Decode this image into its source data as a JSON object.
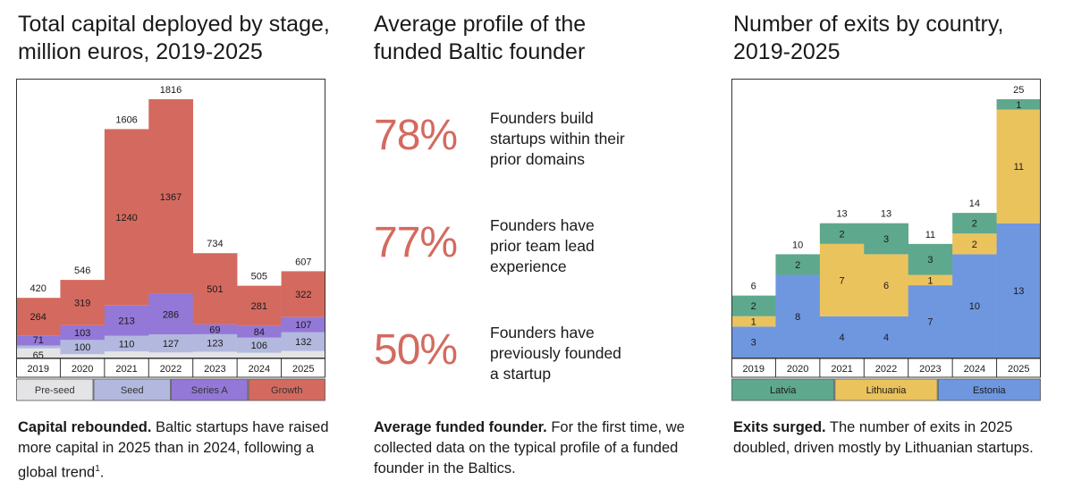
{
  "panels": {
    "capital": {
      "title_lines": [
        "Total capital deployed by stage,",
        "million euros, 2019-2025"
      ],
      "caption_bold": "Capital rebounded.",
      "caption_text": " Baltic startups have raised more capital in 2025 than in 2024, following a global trend",
      "caption_sup": "1",
      "caption_end": "."
    },
    "founder": {
      "title_lines": [
        "Average profile of the",
        "funded Baltic founder"
      ],
      "stats": [
        {
          "value": "78%",
          "lines": [
            "Founders build",
            "startups within their",
            "prior domains"
          ]
        },
        {
          "value": "77%",
          "lines": [
            "Founders have",
            "prior team lead",
            "experience"
          ]
        },
        {
          "value": "50%",
          "lines": [
            "Founders have",
            "previously founded",
            "a startup"
          ]
        }
      ],
      "caption_bold": "Average funded founder.",
      "caption_text": " For the first time, we collected data on the typical profile of a funded founder in the Baltics."
    },
    "exits": {
      "title_lines": [
        "Number of exits by country,",
        "2019-2025"
      ],
      "caption_bold": "Exits surged.",
      "caption_text": " The number of exits in 2025 doubled, driven mostly by Lithuanian startups."
    }
  },
  "chart_data": [
    {
      "type": "bar",
      "stacked": true,
      "title": "Total capital deployed by stage, million euros, 2019-2025",
      "categories": [
        "2019",
        "2020",
        "2021",
        "2022",
        "2023",
        "2024",
        "2025"
      ],
      "totals": [
        420,
        546,
        1606,
        1816,
        734,
        505,
        607
      ],
      "ylim": [
        0,
        1816
      ],
      "series": [
        {
          "name": "Pre-seed",
          "color": "#e4e4e6",
          "values": [
            65,
            24,
            43,
            36,
            41,
            34,
            46
          ],
          "labels": [
            "65",
            "",
            "",
            "",
            "",
            "",
            ""
          ]
        },
        {
          "name": "Seed",
          "color": "#b3b9de",
          "values": [
            20,
            100,
            110,
            127,
            123,
            106,
            132
          ],
          "labels": [
            "",
            "100",
            "110",
            "127",
            "123",
            "106",
            "132"
          ]
        },
        {
          "name": "Series A",
          "color": "#9378d8",
          "values": [
            71,
            103,
            213,
            286,
            69,
            84,
            107
          ],
          "labels": [
            "71",
            "103",
            "213",
            "286",
            "69",
            "84",
            "107"
          ]
        },
        {
          "name": "Growth",
          "color": "#d46a5f",
          "values": [
            264,
            319,
            1240,
            1367,
            501,
            281,
            322
          ],
          "labels": [
            "264",
            "319",
            "1240",
            "1367",
            "501",
            "281",
            "322"
          ]
        }
      ]
    },
    {
      "type": "bar",
      "stacked": true,
      "title": "Number of exits by country, 2019-2025",
      "categories": [
        "2019",
        "2020",
        "2021",
        "2022",
        "2023",
        "2024",
        "2025"
      ],
      "totals": [
        6,
        10,
        13,
        13,
        11,
        14,
        25
      ],
      "ylim": [
        0,
        25
      ],
      "series": [
        {
          "name": "Estonia",
          "color": "#6f97e0",
          "values": [
            3,
            8,
            4,
            4,
            7,
            10,
            13
          ],
          "labels": [
            "3",
            "8",
            "4",
            "4",
            "7",
            "10",
            "13"
          ]
        },
        {
          "name": "Lithuania",
          "color": "#ebc35d",
          "values": [
            1,
            0,
            7,
            6,
            1,
            2,
            11
          ],
          "labels": [
            "1",
            "",
            "7",
            "6",
            "1",
            "2",
            "11"
          ]
        },
        {
          "name": "Latvia",
          "color": "#5ea88d",
          "values": [
            2,
            2,
            2,
            3,
            3,
            2,
            1
          ],
          "labels": [
            "2",
            "2",
            "2",
            "3",
            "3",
            "2",
            "1"
          ]
        }
      ],
      "legend_order": [
        "Latvia",
        "Lithuania",
        "Estonia"
      ]
    }
  ]
}
